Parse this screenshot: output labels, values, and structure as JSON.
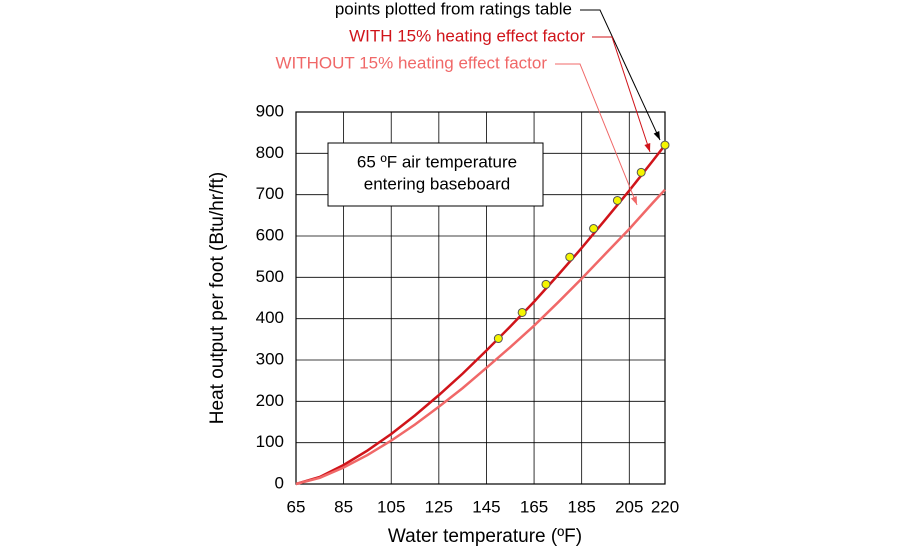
{
  "chart_data": {
    "type": "line",
    "xlabel": "Water temperature (ºF)",
    "ylabel": "Heat output per foot (Btu/hr/ft)",
    "xlim": [
      65,
      220
    ],
    "xticks": [
      65,
      85,
      105,
      125,
      145,
      165,
      185,
      205,
      220
    ],
    "ylim": [
      0,
      900
    ],
    "yticks": [
      0,
      100,
      200,
      300,
      400,
      500,
      600,
      700,
      800,
      900
    ],
    "grid": true,
    "annotation": [
      "65 ºF air temperature",
      "entering baseboard"
    ],
    "series": [
      {
        "name": "points plotted from ratings table",
        "mode": "markers",
        "color": "#f5f500",
        "x": [
          150,
          160,
          170,
          180,
          190,
          200,
          210,
          220
        ],
        "values": [
          352,
          415,
          483,
          549,
          618,
          686,
          754,
          820
        ]
      },
      {
        "name": "WITH 15% heating effect factor",
        "mode": "line",
        "color": "#d0141a",
        "x": [
          65,
          75,
          85,
          95,
          105,
          115,
          125,
          135,
          145,
          155,
          165,
          175,
          185,
          195,
          205,
          215,
          220
        ],
        "values": [
          0,
          17,
          46,
          81,
          121,
          166,
          215,
          267,
          323,
          381,
          441,
          505,
          571,
          640,
          710,
          783,
          820
        ]
      },
      {
        "name": "WITHOUT 15% heating effect factor",
        "mode": "line",
        "color": "#f06868",
        "x": [
          65,
          75,
          85,
          95,
          105,
          115,
          125,
          135,
          145,
          155,
          165,
          175,
          185,
          195,
          205,
          215,
          220
        ],
        "values": [
          0,
          15,
          40,
          70,
          105,
          144,
          187,
          232,
          281,
          331,
          383,
          439,
          497,
          557,
          617,
          681,
          712
        ]
      }
    ]
  }
}
